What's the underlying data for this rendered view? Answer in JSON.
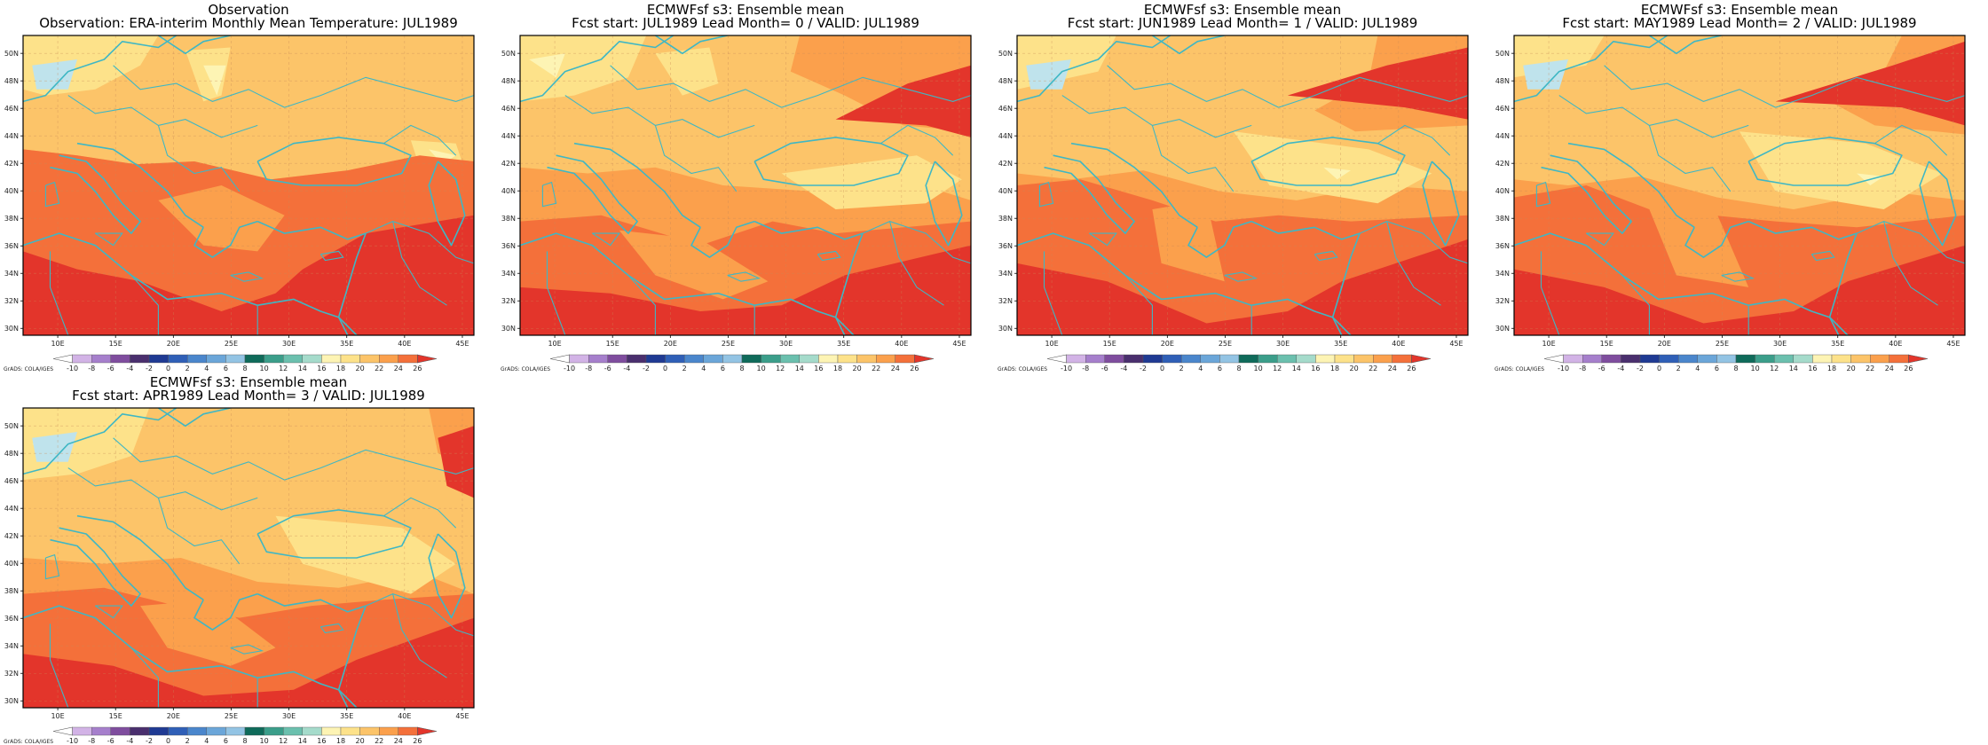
{
  "panels": [
    {
      "title1": "Observation",
      "title2": "Observation: ERA-interim Monthly Mean Temperature: JUL1989",
      "variant": 0
    },
    {
      "title1": "ECMWFsf s3: Ensemble mean",
      "title2": "Fcst start: JUL1989  Lead Month= 0 / VALID: JUL1989",
      "variant": 1
    },
    {
      "title1": "ECMWFsf s3: Ensemble mean",
      "title2": "Fcst start: JUN1989  Lead Month= 1 / VALID: JUL1989",
      "variant": 2
    },
    {
      "title1": "ECMWFsf s3: Ensemble mean",
      "title2": "Fcst start: MAY1989  Lead Month= 2 / VALID: JUL1989",
      "variant": 3
    },
    {
      "title1": "ECMWFsf s3: Ensemble mean",
      "title2": "Fcst start: APR1989  Lead Month= 3 / VALID: JUL1989",
      "variant": 4
    }
  ],
  "map": {
    "lon_range": [
      7,
      46
    ],
    "lat_range": [
      29.5,
      51.3
    ],
    "lon_ticks": [
      "10E",
      "15E",
      "20E",
      "25E",
      "30E",
      "35E",
      "40E",
      "45E"
    ],
    "lon_values": [
      10,
      15,
      20,
      25,
      30,
      35,
      40,
      45
    ],
    "lat_ticks": [
      "30N",
      "32N",
      "34N",
      "36N",
      "38N",
      "40N",
      "42N",
      "44N",
      "46N",
      "48N",
      "50N"
    ],
    "lat_values": [
      30,
      32,
      34,
      36,
      38,
      40,
      42,
      44,
      46,
      48,
      50
    ]
  },
  "colorbar": {
    "labels": [
      "-10",
      "-8",
      "-6",
      "-4",
      "-2",
      "0",
      "2",
      "4",
      "6",
      "8",
      "10",
      "12",
      "14",
      "16",
      "18",
      "20",
      "22",
      "24",
      "26"
    ],
    "colors": [
      "#d2b3e6",
      "#a67fcc",
      "#7f4d9e",
      "#4a2f6e",
      "#1f3a93",
      "#2f5fb7",
      "#4a86cc",
      "#6ba6d9",
      "#93c4e4",
      "#0f6b5a",
      "#3b9e8a",
      "#6bc0ae",
      "#a5dbcb",
      "#fdf4b4",
      "#fde28a",
      "#fcc469",
      "#fba04c",
      "#f4703a",
      "#e3352b"
    ],
    "credit": "GrADS: COLA/IGES"
  },
  "palette": {
    "t16": "#fdf4b4",
    "t18": "#fde28a",
    "t20": "#fcc469",
    "t22": "#fba04c",
    "t24": "#f4703a",
    "t26": "#e3352b",
    "cold": "#bfe3ec",
    "coast": "#3fb7c4"
  }
}
